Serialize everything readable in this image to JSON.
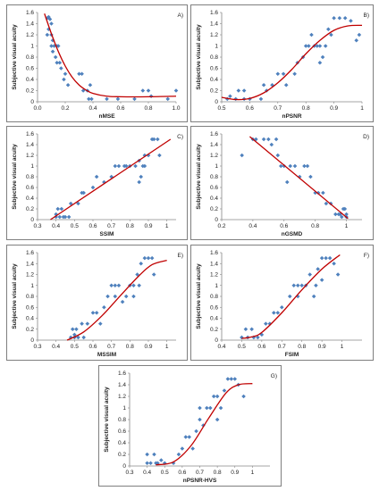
{
  "colors": {
    "marker": "#4f81bd",
    "fit_line": "#c00000",
    "axis": "#868686"
  },
  "chart_data": [
    {
      "type": "scatter",
      "panel_label": "A)",
      "xlabel": "nMSE",
      "ylabel": "Subjective visual acuity",
      "xlim": [
        0,
        1
      ],
      "ylim": [
        0,
        1.6
      ],
      "xticks": [
        "0.0",
        "0.2",
        "0.4",
        "0.6",
        "0.8",
        "1.0"
      ],
      "yticks": [
        "0",
        "0.2",
        "0.4",
        "0.6",
        "0.8",
        "1",
        "1.2",
        "1.4",
        "1.6"
      ],
      "points": [
        [
          0.07,
          1.5
        ],
        [
          0.08,
          1.52
        ],
        [
          0.09,
          1.48
        ],
        [
          0.1,
          1.4
        ],
        [
          0.08,
          1.3
        ],
        [
          0.1,
          1.2
        ],
        [
          0.07,
          1.2
        ],
        [
          0.11,
          1.1
        ],
        [
          0.12,
          1.0
        ],
        [
          0.1,
          1.0
        ],
        [
          0.14,
          1.0
        ],
        [
          0.15,
          1.0
        ],
        [
          0.11,
          0.9
        ],
        [
          0.13,
          0.8
        ],
        [
          0.14,
          0.7
        ],
        [
          0.16,
          0.7
        ],
        [
          0.17,
          0.6
        ],
        [
          0.2,
          0.5
        ],
        [
          0.19,
          0.4
        ],
        [
          0.22,
          0.3
        ],
        [
          0.3,
          0.5
        ],
        [
          0.32,
          0.5
        ],
        [
          0.36,
          0.2
        ],
        [
          0.33,
          0.2
        ],
        [
          0.37,
          0.05
        ],
        [
          0.39,
          0.05
        ],
        [
          0.38,
          0.3
        ],
        [
          0.58,
          0.05
        ],
        [
          0.7,
          0.05
        ],
        [
          0.76,
          0.2
        ],
        [
          0.8,
          0.2
        ],
        [
          0.82,
          0.1
        ],
        [
          0.94,
          0.05
        ],
        [
          1.0,
          0.2
        ],
        [
          0.5,
          0.05
        ]
      ],
      "fit": [
        [
          0.05,
          1.58
        ],
        [
          0.1,
          1.22
        ],
        [
          0.15,
          0.9
        ],
        [
          0.2,
          0.64
        ],
        [
          0.25,
          0.44
        ],
        [
          0.3,
          0.3
        ],
        [
          0.35,
          0.21
        ],
        [
          0.4,
          0.15
        ],
        [
          0.5,
          0.1
        ],
        [
          0.6,
          0.09
        ],
        [
          0.8,
          0.09
        ],
        [
          1.0,
          0.1
        ]
      ]
    },
    {
      "type": "scatter",
      "panel_label": "B)",
      "xlabel": "nPSNR",
      "ylabel": "Subjective visual acuity",
      "xlim": [
        0.5,
        1
      ],
      "ylim": [
        0,
        1.6
      ],
      "xticks": [
        "0.5",
        "0.6",
        "0.7",
        "0.8",
        "0.9",
        "1"
      ],
      "yticks": [
        "0",
        "0.2",
        "0.4",
        "0.6",
        "0.8",
        "1",
        "1.2",
        "1.4",
        "1.6"
      ],
      "points": [
        [
          0.52,
          0.05
        ],
        [
          0.53,
          0.1
        ],
        [
          0.55,
          0.05
        ],
        [
          0.56,
          0.2
        ],
        [
          0.58,
          0.2
        ],
        [
          0.6,
          0.05
        ],
        [
          0.58,
          0.05
        ],
        [
          0.64,
          0.05
        ],
        [
          0.65,
          0.3
        ],
        [
          0.66,
          0.2
        ],
        [
          0.68,
          0.3
        ],
        [
          0.7,
          0.5
        ],
        [
          0.72,
          0.5
        ],
        [
          0.73,
          0.3
        ],
        [
          0.76,
          0.5
        ],
        [
          0.77,
          0.7
        ],
        [
          0.79,
          0.8
        ],
        [
          0.8,
          1.0
        ],
        [
          0.81,
          1.0
        ],
        [
          0.82,
          1.2
        ],
        [
          0.83,
          1.0
        ],
        [
          0.84,
          1.0
        ],
        [
          0.85,
          0.7
        ],
        [
          0.86,
          0.8
        ],
        [
          0.87,
          1.0
        ],
        [
          0.88,
          1.3
        ],
        [
          0.89,
          1.2
        ],
        [
          0.9,
          1.5
        ],
        [
          0.92,
          1.5
        ],
        [
          0.94,
          1.5
        ],
        [
          0.96,
          1.45
        ],
        [
          0.98,
          1.1
        ],
        [
          0.99,
          1.2
        ],
        [
          0.85,
          1.0
        ]
      ],
      "fit": [
        [
          0.5,
          0.08
        ],
        [
          0.55,
          0.04
        ],
        [
          0.6,
          0.06
        ],
        [
          0.65,
          0.16
        ],
        [
          0.7,
          0.34
        ],
        [
          0.75,
          0.58
        ],
        [
          0.8,
          0.86
        ],
        [
          0.85,
          1.1
        ],
        [
          0.9,
          1.28
        ],
        [
          0.95,
          1.36
        ],
        [
          1.0,
          1.37
        ]
      ]
    },
    {
      "type": "scatter",
      "panel_label": "C)",
      "xlabel": "SSIM",
      "ylabel": "Subjective visual acuity",
      "xlim": [
        0.3,
        1.05
      ],
      "ylim": [
        0,
        1.6
      ],
      "xticks": [
        "0.3",
        "0.4",
        "0.5",
        "0.6",
        "0.7",
        "0.8",
        "0.9",
        "1"
      ],
      "yticks": [
        "0",
        "0.2",
        "0.4",
        "0.6",
        "0.8",
        "1",
        "1.2",
        "1.4",
        "1.6"
      ],
      "points": [
        [
          0.4,
          0.05
        ],
        [
          0.41,
          0.2
        ],
        [
          0.4,
          0.1
        ],
        [
          0.42,
          0.05
        ],
        [
          0.43,
          0.2
        ],
        [
          0.44,
          0.05
        ],
        [
          0.45,
          0.05
        ],
        [
          0.47,
          0.05
        ],
        [
          0.48,
          0.3
        ],
        [
          0.52,
          0.3
        ],
        [
          0.54,
          0.5
        ],
        [
          0.55,
          0.5
        ],
        [
          0.6,
          0.6
        ],
        [
          0.62,
          0.8
        ],
        [
          0.66,
          0.7
        ],
        [
          0.7,
          0.8
        ],
        [
          0.72,
          1.0
        ],
        [
          0.74,
          1.0
        ],
        [
          0.77,
          1.0
        ],
        [
          0.78,
          1.0
        ],
        [
          0.8,
          1.0
        ],
        [
          0.83,
          1.0
        ],
        [
          0.85,
          0.7
        ],
        [
          0.86,
          0.8
        ],
        [
          0.87,
          1.0
        ],
        [
          0.88,
          1.2
        ],
        [
          0.9,
          1.2
        ],
        [
          0.92,
          1.5
        ],
        [
          0.93,
          1.5
        ],
        [
          0.95,
          1.5
        ],
        [
          0.96,
          1.2
        ],
        [
          0.88,
          1.0
        ],
        [
          0.85,
          1.1
        ]
      ],
      "fit": [
        [
          0.37,
          0.0
        ],
        [
          1.02,
          1.5
        ]
      ]
    },
    {
      "type": "scatter",
      "panel_label": "D)",
      "xlabel": "nGSMD",
      "ylabel": "Subjective visual acuity",
      "xlim": [
        0.2,
        1.1
      ],
      "ylim": [
        0,
        1.6
      ],
      "xticks": [
        "0.2",
        "0.4",
        "0.6",
        "0.8",
        "1"
      ],
      "yticks": [
        "0",
        "0.2",
        "0.4",
        "0.6",
        "0.8",
        "1",
        "1.2",
        "1.4",
        "1.6"
      ],
      "points": [
        [
          0.33,
          1.2
        ],
        [
          0.4,
          1.5
        ],
        [
          0.42,
          1.5
        ],
        [
          0.47,
          1.5
        ],
        [
          0.5,
          1.5
        ],
        [
          0.52,
          1.4
        ],
        [
          0.55,
          1.5
        ],
        [
          0.56,
          1.2
        ],
        [
          0.58,
          1.0
        ],
        [
          0.6,
          1.0
        ],
        [
          0.62,
          0.7
        ],
        [
          0.64,
          1.0
        ],
        [
          0.67,
          1.0
        ],
        [
          0.7,
          0.8
        ],
        [
          0.73,
          1.0
        ],
        [
          0.75,
          1.0
        ],
        [
          0.77,
          0.8
        ],
        [
          0.8,
          0.5
        ],
        [
          0.82,
          0.5
        ],
        [
          0.85,
          0.5
        ],
        [
          0.87,
          0.3
        ],
        [
          0.9,
          0.3
        ],
        [
          0.93,
          0.1
        ],
        [
          0.95,
          0.1
        ],
        [
          0.97,
          0.05
        ],
        [
          0.98,
          0.2
        ],
        [
          0.99,
          0.2
        ],
        [
          1.0,
          0.05
        ],
        [
          0.96,
          0.1
        ],
        [
          1.0,
          0.1
        ]
      ],
      "fit": [
        [
          0.38,
          1.55
        ],
        [
          1.01,
          0.02
        ]
      ]
    },
    {
      "type": "scatter",
      "panel_label": "E)",
      "xlabel": "MSSIM",
      "ylabel": "Subjective visual acuity",
      "xlim": [
        0.3,
        1.05
      ],
      "ylim": [
        0,
        1.6
      ],
      "xticks": [
        "0.3",
        "0.4",
        "0.5",
        "0.6",
        "0.7",
        "0.8",
        "0.9",
        "1"
      ],
      "yticks": [
        "0",
        "0.2",
        "0.4",
        "0.6",
        "0.8",
        "1",
        "1.2",
        "1.4",
        "1.6"
      ],
      "points": [
        [
          0.48,
          0.05
        ],
        [
          0.49,
          0.2
        ],
        [
          0.5,
          0.1
        ],
        [
          0.5,
          0.05
        ],
        [
          0.51,
          0.2
        ],
        [
          0.52,
          0.05
        ],
        [
          0.54,
          0.3
        ],
        [
          0.55,
          0.05
        ],
        [
          0.57,
          0.3
        ],
        [
          0.6,
          0.5
        ],
        [
          0.62,
          0.5
        ],
        [
          0.64,
          0.3
        ],
        [
          0.66,
          0.6
        ],
        [
          0.68,
          0.8
        ],
        [
          0.7,
          1.0
        ],
        [
          0.72,
          1.0
        ],
        [
          0.74,
          1.0
        ],
        [
          0.76,
          0.7
        ],
        [
          0.78,
          0.8
        ],
        [
          0.8,
          1.0
        ],
        [
          0.82,
          1.0
        ],
        [
          0.84,
          1.2
        ],
        [
          0.85,
          1.0
        ],
        [
          0.86,
          1.4
        ],
        [
          0.88,
          1.5
        ],
        [
          0.9,
          1.5
        ],
        [
          0.92,
          1.5
        ],
        [
          0.93,
          1.2
        ],
        [
          0.82,
          0.8
        ],
        [
          0.72,
          0.8
        ]
      ],
      "fit": [
        [
          0.46,
          0.0
        ],
        [
          0.55,
          0.15
        ],
        [
          0.65,
          0.45
        ],
        [
          0.75,
          0.82
        ],
        [
          0.85,
          1.18
        ],
        [
          0.92,
          1.38
        ],
        [
          1.0,
          1.46
        ]
      ]
    },
    {
      "type": "scatter",
      "panel_label": "F)",
      "xlabel": "FSIM",
      "ylabel": "Subjective visual acuity",
      "xlim": [
        0.4,
        1.1
      ],
      "ylim": [
        0,
        1.6
      ],
      "xticks": [
        "0.4",
        "0.5",
        "0.6",
        "0.7",
        "0.8",
        "0.9",
        "1"
      ],
      "yticks": [
        "0",
        "0.2",
        "0.4",
        "0.6",
        "0.8",
        "1",
        "1.2",
        "1.4",
        "1.6"
      ],
      "points": [
        [
          0.5,
          0.05
        ],
        [
          0.52,
          0.2
        ],
        [
          0.53,
          0.05
        ],
        [
          0.55,
          0.2
        ],
        [
          0.56,
          0.05
        ],
        [
          0.58,
          0.05
        ],
        [
          0.6,
          0.1
        ],
        [
          0.62,
          0.3
        ],
        [
          0.64,
          0.3
        ],
        [
          0.66,
          0.5
        ],
        [
          0.68,
          0.5
        ],
        [
          0.7,
          0.6
        ],
        [
          0.74,
          0.8
        ],
        [
          0.76,
          1.0
        ],
        [
          0.78,
          1.0
        ],
        [
          0.8,
          1.0
        ],
        [
          0.82,
          1.0
        ],
        [
          0.84,
          1.2
        ],
        [
          0.86,
          0.8
        ],
        [
          0.87,
          1.0
        ],
        [
          0.88,
          1.3
        ],
        [
          0.9,
          1.5
        ],
        [
          0.92,
          1.5
        ],
        [
          0.94,
          1.5
        ],
        [
          0.96,
          1.4
        ],
        [
          0.98,
          1.2
        ],
        [
          0.9,
          1.1
        ],
        [
          0.78,
          0.8
        ]
      ],
      "fit": [
        [
          0.5,
          0.03
        ],
        [
          0.55,
          0.06
        ],
        [
          0.6,
          0.14
        ],
        [
          0.7,
          0.5
        ],
        [
          0.8,
          0.92
        ],
        [
          0.9,
          1.3
        ],
        [
          0.99,
          1.56
        ]
      ]
    },
    {
      "type": "scatter",
      "panel_label": "G)",
      "xlabel": "nPSNR-HVS",
      "ylabel": "Subjective visual acuity",
      "xlim": [
        0.3,
        1.1
      ],
      "ylim": [
        0,
        1.6
      ],
      "xticks": [
        "0.3",
        "0.4",
        "0.5",
        "0.6",
        "0.7",
        "0.8",
        "0.9",
        "1"
      ],
      "yticks": [
        "0",
        "0.2",
        "0.4",
        "0.6",
        "0.8",
        "1",
        "1.2",
        "1.4",
        "1.6"
      ],
      "points": [
        [
          0.4,
          0.05
        ],
        [
          0.4,
          0.2
        ],
        [
          0.42,
          0.05
        ],
        [
          0.44,
          0.2
        ],
        [
          0.45,
          0.05
        ],
        [
          0.46,
          0.05
        ],
        [
          0.48,
          0.1
        ],
        [
          0.5,
          0.05
        ],
        [
          0.55,
          0.05
        ],
        [
          0.58,
          0.2
        ],
        [
          0.6,
          0.3
        ],
        [
          0.62,
          0.5
        ],
        [
          0.64,
          0.5
        ],
        [
          0.66,
          0.3
        ],
        [
          0.68,
          0.6
        ],
        [
          0.7,
          0.8
        ],
        [
          0.72,
          0.7
        ],
        [
          0.74,
          1.0
        ],
        [
          0.76,
          1.0
        ],
        [
          0.78,
          1.2
        ],
        [
          0.8,
          1.2
        ],
        [
          0.82,
          1.0
        ],
        [
          0.84,
          1.3
        ],
        [
          0.86,
          1.5
        ],
        [
          0.88,
          1.5
        ],
        [
          0.9,
          1.5
        ],
        [
          0.92,
          1.4
        ],
        [
          0.95,
          1.2
        ],
        [
          0.8,
          0.8
        ],
        [
          0.7,
          1.0
        ]
      ],
      "fit": [
        [
          0.45,
          0.02
        ],
        [
          0.55,
          0.07
        ],
        [
          0.65,
          0.35
        ],
        [
          0.75,
          0.82
        ],
        [
          0.85,
          1.26
        ],
        [
          0.92,
          1.4
        ],
        [
          1.0,
          1.42
        ]
      ]
    }
  ]
}
